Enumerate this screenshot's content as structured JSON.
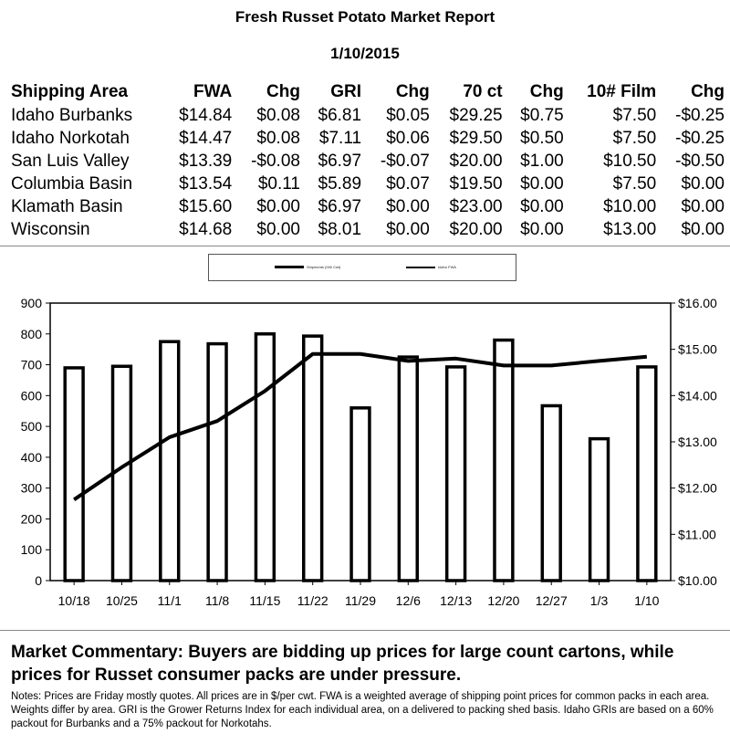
{
  "report": {
    "title": "Fresh Russet Potato Market Report",
    "date": "1/10/2015",
    "columns": [
      "Shipping Area",
      "FWA",
      "Chg",
      "GRI",
      "Chg",
      "70 ct",
      "Chg",
      "10# Film",
      "Chg"
    ],
    "rows": [
      [
        "Idaho Burbanks",
        "$14.84",
        "$0.08",
        "$6.81",
        "$0.05",
        "$29.25",
        "$0.75",
        "$7.50",
        "-$0.25"
      ],
      [
        "Idaho Norkotah",
        "$14.47",
        "$0.08",
        "$7.11",
        "$0.06",
        "$29.50",
        "$0.50",
        "$7.50",
        "-$0.25"
      ],
      [
        "San Luis Valley",
        "$13.39",
        "-$0.08",
        "$6.97",
        "-$0.07",
        "$20.00",
        "$1.00",
        "$10.50",
        "-$0.50"
      ],
      [
        "Columbia Basin",
        "$13.54",
        "$0.11",
        "$5.89",
        "$0.07",
        "$19.50",
        "$0.00",
        "$7.50",
        "$0.00"
      ],
      [
        "Klamath Basin",
        "$15.60",
        "$0.00",
        "$6.97",
        "$0.00",
        "$23.00",
        "$0.00",
        "$10.00",
        "$0.00"
      ],
      [
        "Wisconsin",
        "$14.68",
        "$0.00",
        "$8.01",
        "$0.00",
        "$20.00",
        "$0.00",
        "$13.00",
        "$0.00"
      ]
    ]
  },
  "chart_data": {
    "type": "bar",
    "categories": [
      "10/18",
      "10/25",
      "11/1",
      "11/8",
      "11/15",
      "11/22",
      "11/29",
      "12/6",
      "12/13",
      "12/20",
      "12/27",
      "1/3",
      "1/10"
    ],
    "series": [
      {
        "name": "Shipments (000 Cwt)",
        "type": "bar",
        "axis": "left",
        "values": [
          690,
          695,
          775,
          768,
          800,
          793,
          560,
          725,
          693,
          780,
          567,
          460,
          693
        ]
      },
      {
        "name": "Idaho FWA",
        "type": "line",
        "axis": "right",
        "values": [
          11.75,
          12.45,
          13.1,
          13.45,
          14.1,
          14.9,
          14.9,
          14.75,
          14.8,
          14.65,
          14.65,
          14.75,
          14.84
        ]
      }
    ],
    "y_left": {
      "min": 0,
      "max": 900,
      "step": 100,
      "ticks": [
        "0",
        "100",
        "200",
        "300",
        "400",
        "500",
        "600",
        "700",
        "800",
        "900"
      ]
    },
    "y_right": {
      "min": 10,
      "max": 16,
      "step": 1,
      "ticks": [
        "$10.00",
        "$11.00",
        "$12.00",
        "$13.00",
        "$14.00",
        "$15.00",
        "$16.00"
      ]
    },
    "grid": false,
    "legend": "top-center",
    "colors": {
      "bar_fill": "#ffffff",
      "bar_stroke": "#000000",
      "line": "#000000"
    }
  },
  "commentary": "Market Commentary: Buyers are bidding up prices for large count cartons, while prices for Russet consumer packs are under pressure.",
  "notes": "Notes: Prices are Friday mostly quotes. All prices are in $/per cwt. FWA is a weighted average of shipping point prices for  common packs in each area. Weights differ by area. GRI is the Grower Returns Index for each individual area, on a delivered to packing shed basis. Idaho GRIs are based on a 60% packout for Burbanks and a 75% packout for Norkotahs."
}
